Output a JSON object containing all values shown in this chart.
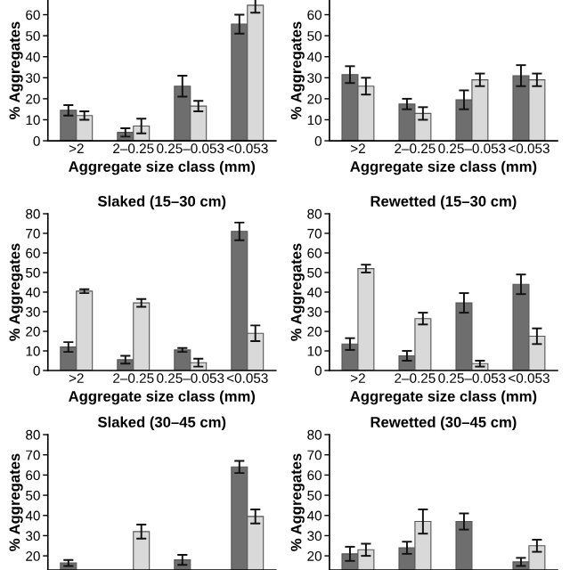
{
  "chart_data": [
    {
      "type": "bar",
      "categories": [
        ">2",
        "2–0.25",
        "0.25–0.053",
        "<0.053"
      ],
      "xlabel": "Aggregate size class (mm)",
      "ylabel": "% Aggregates",
      "ylim": [
        0,
        67
      ],
      "yticks": [
        0,
        10,
        20,
        30,
        40,
        50,
        60
      ],
      "grid": false,
      "series": [
        {
          "color": "#6e6e6e",
          "values": [
            14.5,
            4,
            26,
            55.5
          ],
          "errors": [
            2.5,
            2,
            5,
            4.5
          ]
        },
        {
          "color": "#d9d9d9",
          "values": [
            12,
            7,
            16.5,
            64.5
          ],
          "errors": [
            2,
            3.5,
            2.5,
            3.5
          ]
        }
      ]
    },
    {
      "type": "bar",
      "categories": [
        ">2",
        "2–0.25",
        "0.25–0.053",
        "<0.053"
      ],
      "xlabel": "Aggregate size class (mm)",
      "ylabel": "% Aggregates",
      "ylim": [
        0,
        67
      ],
      "yticks": [
        0,
        10,
        20,
        30,
        40,
        50,
        60
      ],
      "grid": false,
      "series": [
        {
          "color": "#6e6e6e",
          "values": [
            31.5,
            17.5,
            19.5,
            31
          ],
          "errors": [
            4,
            2.5,
            4.5,
            5
          ]
        },
        {
          "color": "#d9d9d9",
          "values": [
            26,
            13,
            29,
            29
          ],
          "errors": [
            4,
            3,
            3,
            3
          ]
        }
      ]
    },
    {
      "type": "bar",
      "title": "Slaked (15–30 cm)",
      "categories": [
        ">2",
        "2–0.25",
        "0.25–0.053",
        "<0.053"
      ],
      "xlabel": "Aggregate size class (mm)",
      "ylabel": "% Aggregates",
      "ylim": [
        0,
        80
      ],
      "yticks": [
        0,
        10,
        20,
        30,
        40,
        50,
        60,
        70,
        80
      ],
      "grid": false,
      "series": [
        {
          "color": "#6e6e6e",
          "values": [
            12,
            5.5,
            10.5,
            71
          ],
          "errors": [
            2.5,
            2,
            1,
            4.5
          ]
        },
        {
          "color": "#d9d9d9",
          "values": [
            40.5,
            34.5,
            4,
            19
          ],
          "errors": [
            1,
            2,
            2,
            4
          ]
        }
      ]
    },
    {
      "type": "bar",
      "title": "Rewetted (15–30 cm)",
      "categories": [
        ">2",
        "2–0.25",
        "0.25–0.053",
        "<0.053"
      ],
      "xlabel": "Aggregate size class (mm)",
      "ylabel": "% Aggregates",
      "ylim": [
        0,
        80
      ],
      "yticks": [
        0,
        10,
        20,
        30,
        40,
        50,
        60,
        70,
        80
      ],
      "grid": false,
      "series": [
        {
          "color": "#6e6e6e",
          "values": [
            13.5,
            7.5,
            34.5,
            44
          ],
          "errors": [
            3,
            2.5,
            5,
            5
          ]
        },
        {
          "color": "#d9d9d9",
          "values": [
            52,
            26.5,
            3.5,
            17.5
          ],
          "errors": [
            2,
            3,
            1.5,
            4
          ]
        }
      ]
    },
    {
      "type": "bar",
      "title": "Slaked (30–45 cm)",
      "categories": [
        null,
        null,
        null,
        null
      ],
      "ylabel": "% Aggregates",
      "ylim": [
        13,
        80
      ],
      "yticks": [
        20,
        30,
        40,
        50,
        60,
        70,
        80
      ],
      "grid": false,
      "tick_labels": "y",
      "series": [
        {
          "color": "#6e6e6e",
          "values": [
            16.5,
            null,
            18,
            64
          ],
          "errors": [
            1.5,
            null,
            2.5,
            3
          ]
        },
        {
          "color": "#d9d9d9",
          "values": [
            null,
            32,
            null,
            39.5
          ],
          "errors": [
            null,
            3.5,
            null,
            3.5
          ]
        }
      ]
    },
    {
      "type": "bar",
      "title": "Rewetted (30–45 cm)",
      "categories": [
        null,
        null,
        null,
        null
      ],
      "ylabel": "% Aggregates",
      "ylim": [
        13,
        80
      ],
      "yticks": [
        20,
        30,
        40,
        50,
        60,
        70,
        80
      ],
      "grid": false,
      "tick_labels": "y",
      "series": [
        {
          "color": "#6e6e6e",
          "values": [
            21,
            24,
            37,
            17
          ],
          "errors": [
            3.5,
            3,
            4,
            2
          ]
        },
        {
          "color": "#d9d9d9",
          "values": [
            23,
            37,
            null,
            25
          ],
          "errors": [
            3,
            6,
            null,
            3
          ]
        }
      ]
    }
  ]
}
